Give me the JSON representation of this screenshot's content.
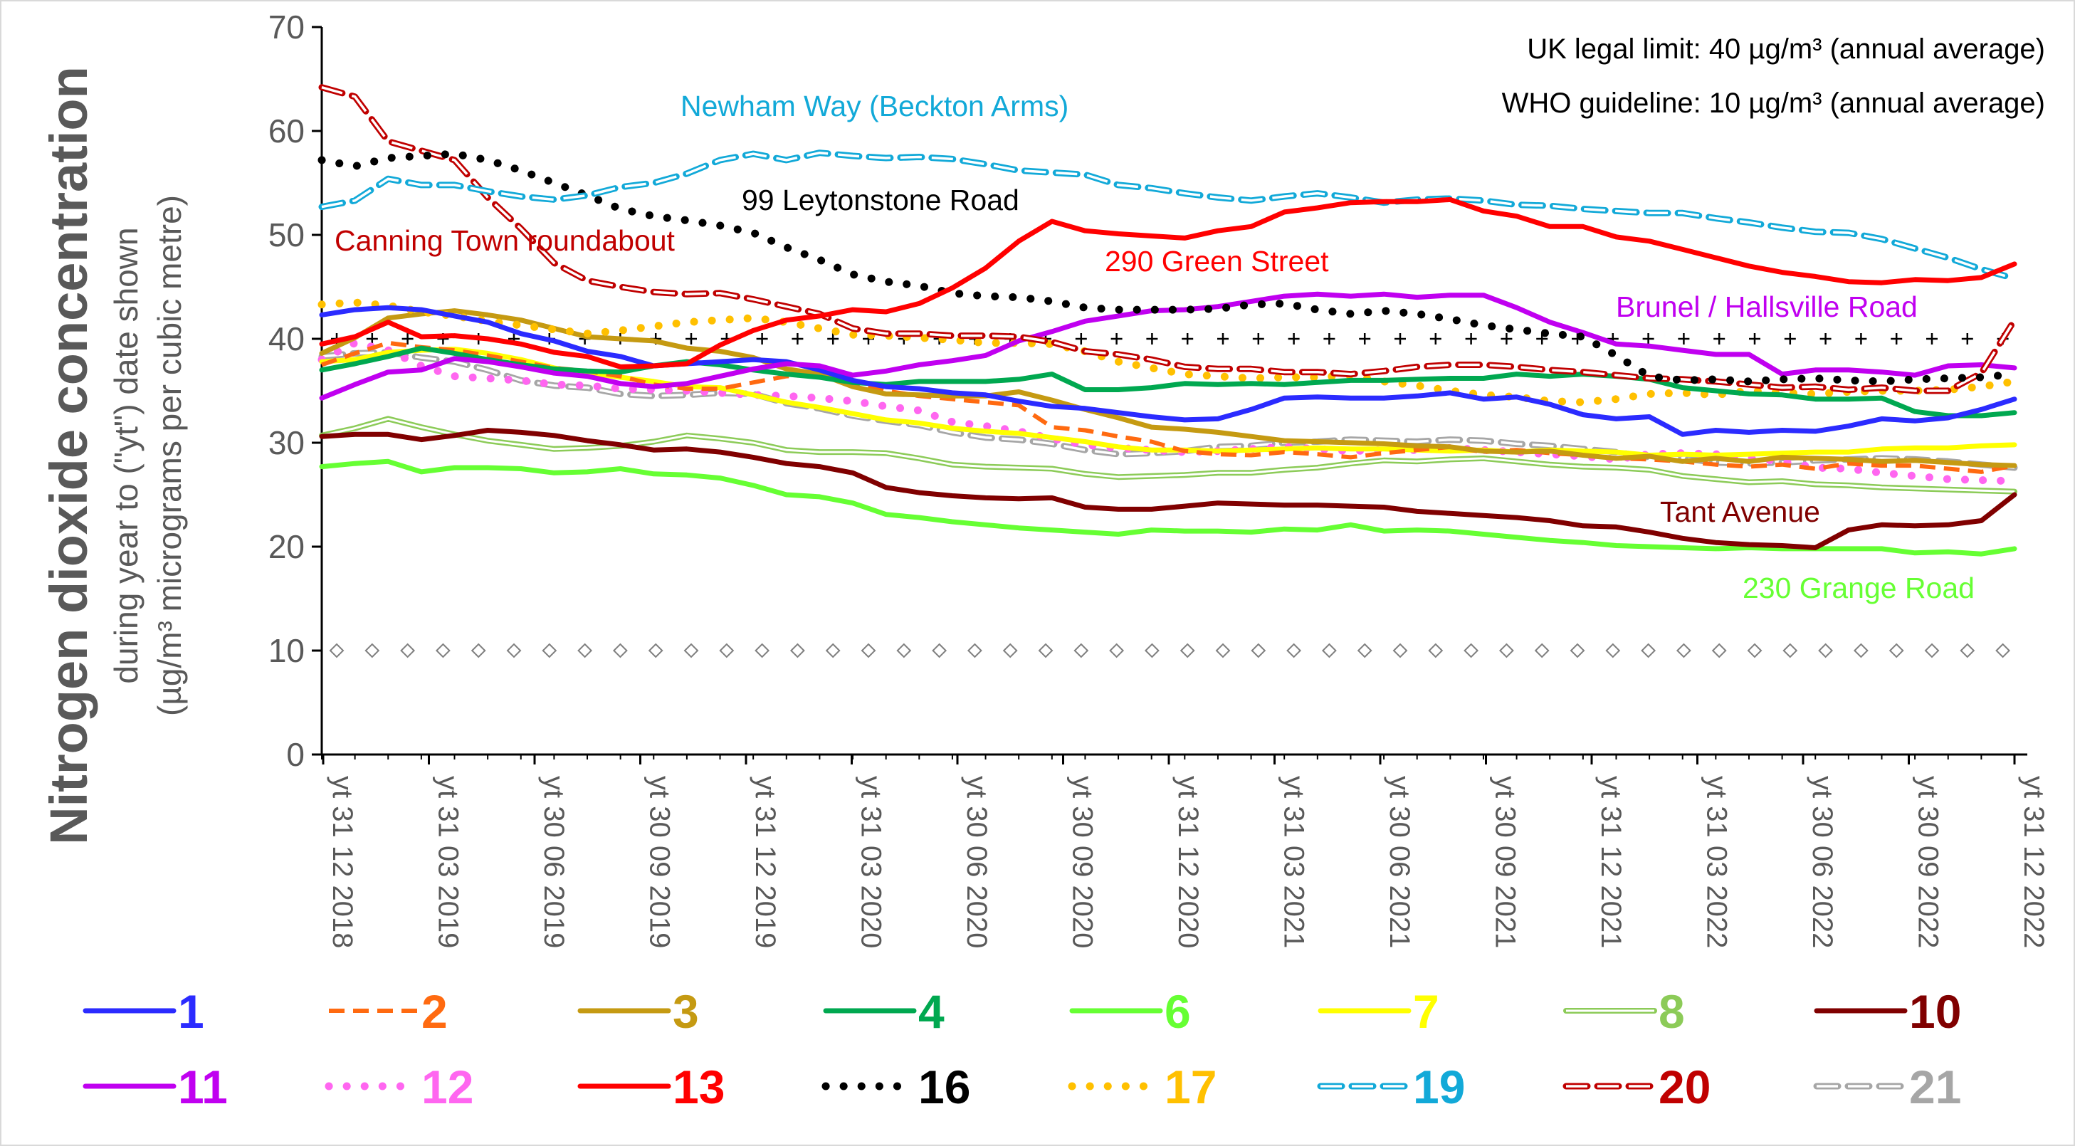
{
  "chart_data": {
    "type": "line",
    "ylabel_main": "Nitrogen dioxide concentration",
    "ylabel_sub1": "during year to (\"yt\") date shown",
    "ylabel_sub2": "(µg/m³ micrograms per cubic metre)",
    "ylim": [
      0,
      70
    ],
    "yticks": [
      "0",
      "10",
      "20",
      "30",
      "40",
      "50",
      "60",
      "70"
    ],
    "x_labels": [
      "yt 31 12 2018",
      "yt 31 03 2019",
      "yt 30 06 2019",
      "yt 30 09 2019",
      "yt 31 12 2019",
      "yt 31 03 2020",
      "yt 30 06 2020",
      "yt 30 09 2020",
      "yt 31 12 2020",
      "yt 31 03 2021",
      "yt 30 06 2021",
      "yt 30 09 2021",
      "yt 31 12 2021",
      "yt 31 03 2022",
      "yt 30 06 2022",
      "yt 30 09 2022",
      "yt 31 12 2022"
    ],
    "notes": {
      "uk_limit": "UK legal limit:  40 µg/m³  (annual average)",
      "who_guideline": "WHO guideline:  10 µg/m³  (annual average)"
    },
    "reference_lines": [
      {
        "value": 40,
        "marker": "plus",
        "color": "#000000"
      },
      {
        "value": 10,
        "marker": "diamond",
        "color": "#808080"
      }
    ],
    "annotations": [
      {
        "text": "Newham Way (Beckton Arms)",
        "color": "#12A9D8"
      },
      {
        "text": "99 Leytonstone Road",
        "color": "#000000"
      },
      {
        "text": "Canning Town roundabout",
        "color": "#C00000"
      },
      {
        "text": "290 Green Street",
        "color": "#FF0000"
      },
      {
        "text": "Brunel / Hallsville Road",
        "color": "#C000F0"
      },
      {
        "text": "Tant Avenue",
        "color": "#800000"
      },
      {
        "text": "230 Grange Road",
        "color": "#66FF33"
      }
    ],
    "series": [
      {
        "name": "1",
        "color": "#2B2BFF",
        "style": "solid",
        "values": [
          42.3,
          42.8,
          43.0,
          42.8,
          42.2,
          41.6,
          40.5,
          39.8,
          38.8,
          38.3,
          37.4,
          37.6,
          37.8,
          38.0,
          37.8,
          37.0,
          36.0,
          35.4,
          35.2,
          34.8,
          34.6,
          34.0,
          33.5,
          33.3,
          32.9,
          32.5,
          32.2,
          32.3,
          33.2,
          34.3,
          34.4,
          34.3,
          34.3,
          34.5,
          34.8,
          34.2,
          34.4,
          33.7,
          32.7,
          32.3,
          32.5,
          30.8,
          31.2,
          31.0,
          31.2,
          31.1,
          31.6,
          32.3,
          32.1,
          32.4,
          33.2,
          34.2
        ]
      },
      {
        "name": "2",
        "color": "#FF6A10",
        "style": "dashed",
        "values": [
          37.5,
          38.6,
          39.6,
          39.2,
          38.9,
          38.4,
          37.8,
          37.2,
          36.9,
          36.4,
          35.6,
          35.2,
          35.2,
          35.8,
          36.4,
          36.6,
          35.6,
          35.0,
          34.5,
          34.2,
          33.9,
          33.6,
          31.5,
          31.2,
          30.6,
          30.1,
          29.2,
          28.9,
          28.8,
          29.1,
          28.9,
          28.6,
          29.0,
          29.3,
          29.6,
          29.1,
          29.3,
          29.0,
          28.8,
          28.5,
          28.4,
          28.2,
          27.9,
          27.7,
          27.9,
          27.5,
          28.0,
          27.8,
          27.8,
          27.5,
          27.2,
          27.8
        ]
      },
      {
        "name": "3",
        "color": "#C59A12",
        "style": "solid",
        "values": [
          38.6,
          40.1,
          42.0,
          42.4,
          42.7,
          42.3,
          41.8,
          41.0,
          40.2,
          40.0,
          39.8,
          39.1,
          38.8,
          38.2,
          37.1,
          36.6,
          35.4,
          34.7,
          34.6,
          34.5,
          34.5,
          34.9,
          34.1,
          33.2,
          32.4,
          31.5,
          31.3,
          31.0,
          30.6,
          30.2,
          30.1,
          30.0,
          29.9,
          29.7,
          29.6,
          29.2,
          29.1,
          29.2,
          28.8,
          28.5,
          28.7,
          28.2,
          28.5,
          28.2,
          28.6,
          28.5,
          28.4,
          28.2,
          28.3,
          28.1,
          27.9,
          27.8
        ]
      },
      {
        "name": "4",
        "color": "#00A850",
        "style": "solid",
        "values": [
          37.0,
          37.6,
          38.3,
          39.1,
          38.6,
          38.0,
          37.5,
          37.1,
          36.9,
          36.8,
          37.4,
          37.8,
          37.5,
          37.0,
          36.6,
          36.3,
          35.8,
          35.6,
          35.9,
          35.9,
          35.9,
          36.1,
          36.6,
          35.1,
          35.1,
          35.3,
          35.7,
          35.6,
          35.7,
          35.6,
          35.8,
          36.0,
          36.0,
          36.1,
          36.2,
          36.2,
          36.6,
          36.4,
          36.6,
          36.4,
          36.1,
          35.3,
          35.0,
          34.7,
          34.6,
          34.2,
          34.2,
          34.3,
          33.0,
          32.6,
          32.6,
          32.9
        ]
      },
      {
        "name": "6",
        "color": "#66FF33",
        "style": "solid",
        "values": [
          27.7,
          28.0,
          28.2,
          27.2,
          27.6,
          27.6,
          27.5,
          27.1,
          27.2,
          27.5,
          27.0,
          26.9,
          26.6,
          25.9,
          25.0,
          24.8,
          24.2,
          23.1,
          22.8,
          22.4,
          22.1,
          21.8,
          21.6,
          21.4,
          21.2,
          21.6,
          21.5,
          21.5,
          21.4,
          21.7,
          21.6,
          22.1,
          21.5,
          21.6,
          21.5,
          21.2,
          20.9,
          20.6,
          20.4,
          20.1,
          20.0,
          19.9,
          19.8,
          19.9,
          19.8,
          19.8,
          19.8,
          19.8,
          19.4,
          19.5,
          19.3,
          19.8
        ]
      },
      {
        "name": "7",
        "color": "#FFFF00",
        "style": "solid",
        "values": [
          37.8,
          38.0,
          38.7,
          38.9,
          39.0,
          38.6,
          38.0,
          37.2,
          36.7,
          36.3,
          35.9,
          35.4,
          35.3,
          34.6,
          33.9,
          33.4,
          32.8,
          32.2,
          31.9,
          31.4,
          31.1,
          30.9,
          30.5,
          30.1,
          29.6,
          29.3,
          29.3,
          29.2,
          29.3,
          29.4,
          29.5,
          29.4,
          29.4,
          29.3,
          29.2,
          29.3,
          29.1,
          29.3,
          29.2,
          29.1,
          28.8,
          28.9,
          28.8,
          28.9,
          29.0,
          29.1,
          29.1,
          29.4,
          29.5,
          29.5,
          29.7,
          29.8
        ]
      },
      {
        "name": "8",
        "color": "#8CCB58",
        "style": "double",
        "values": [
          30.7,
          31.4,
          32.3,
          31.5,
          30.8,
          30.2,
          29.8,
          29.4,
          29.5,
          29.7,
          30.1,
          30.7,
          30.4,
          30.0,
          29.3,
          29.1,
          29.1,
          29.0,
          28.5,
          27.9,
          27.7,
          27.6,
          27.5,
          27.0,
          26.7,
          26.8,
          26.9,
          27.1,
          27.1,
          27.4,
          27.6,
          28.0,
          28.3,
          28.2,
          28.4,
          28.5,
          28.2,
          27.9,
          27.7,
          27.6,
          27.4,
          26.8,
          26.5,
          26.2,
          26.3,
          26.0,
          25.9,
          25.7,
          25.6,
          25.5,
          25.4,
          25.3
        ]
      },
      {
        "name": "10",
        "color": "#800000",
        "style": "solid",
        "values": [
          30.6,
          30.8,
          30.8,
          30.3,
          30.7,
          31.2,
          31.0,
          30.7,
          30.2,
          29.8,
          29.3,
          29.4,
          29.1,
          28.6,
          28.0,
          27.7,
          27.1,
          25.7,
          25.2,
          24.9,
          24.7,
          24.6,
          24.7,
          23.8,
          23.6,
          23.6,
          23.9,
          24.2,
          24.1,
          24.0,
          24.0,
          23.9,
          23.8,
          23.4,
          23.2,
          23.0,
          22.8,
          22.5,
          22.0,
          21.9,
          21.4,
          20.8,
          20.4,
          20.2,
          20.1,
          19.9,
          21.6,
          22.1,
          22.0,
          22.1,
          22.5,
          25.0
        ]
      },
      {
        "name": "11",
        "color": "#C000F0",
        "style": "solid",
        "values": [
          34.3,
          35.6,
          36.8,
          37.0,
          38.1,
          37.8,
          37.3,
          36.7,
          36.4,
          35.7,
          35.4,
          35.7,
          36.4,
          37.1,
          37.6,
          37.4,
          36.5,
          36.9,
          37.5,
          37.9,
          38.4,
          39.8,
          40.7,
          41.7,
          42.2,
          42.7,
          42.8,
          43.1,
          43.6,
          44.1,
          44.3,
          44.1,
          44.3,
          44.0,
          44.2,
          44.2,
          43.0,
          41.6,
          40.6,
          39.5,
          39.3,
          38.9,
          38.5,
          38.5,
          36.6,
          37.0,
          37.0,
          36.8,
          36.5,
          37.4,
          37.5,
          37.2
        ]
      },
      {
        "name": "12",
        "color": "#FF66F0",
        "style": "dotted",
        "values": [
          38.0,
          39.6,
          38.9,
          37.4,
          36.4,
          36.2,
          36.0,
          35.6,
          35.5,
          35.2,
          35.1,
          35.0,
          34.8,
          34.6,
          34.5,
          34.3,
          34.0,
          33.5,
          33.1,
          32.0,
          31.6,
          31.1,
          30.4,
          29.8,
          29.5,
          29.3,
          29.1,
          29.2,
          29.4,
          29.6,
          29.4,
          29.2,
          29.3,
          29.3,
          29.5,
          29.3,
          29.1,
          28.9,
          28.7,
          28.4,
          28.9,
          29.0,
          28.9,
          28.5,
          28.2,
          27.6,
          27.5,
          27.1,
          26.8,
          26.5,
          26.4,
          26.3
        ]
      },
      {
        "name": "13",
        "color": "#FF0000",
        "style": "solid",
        "values": [
          39.5,
          40.2,
          41.6,
          40.2,
          40.3,
          40.0,
          39.5,
          38.7,
          38.3,
          37.3,
          37.4,
          37.6,
          39.4,
          40.8,
          41.8,
          42.2,
          42.8,
          42.6,
          43.4,
          44.9,
          46.8,
          49.4,
          51.3,
          50.4,
          50.1,
          49.9,
          49.7,
          50.4,
          50.8,
          52.2,
          52.6,
          53.1,
          53.2,
          53.2,
          53.4,
          52.3,
          51.8,
          50.8,
          50.8,
          49.8,
          49.4,
          48.6,
          47.8,
          47.0,
          46.4,
          46.0,
          45.5,
          45.4,
          45.7,
          45.6,
          45.9,
          47.2
        ]
      },
      {
        "name": "16",
        "color": "#000000",
        "style": "dotted",
        "values": [
          57.2,
          56.6,
          57.4,
          57.6,
          57.8,
          57.2,
          56.2,
          55.0,
          53.8,
          52.5,
          51.8,
          51.4,
          50.9,
          50.2,
          48.8,
          47.6,
          46.2,
          45.5,
          45.1,
          44.4,
          44.1,
          44.0,
          43.6,
          43.0,
          42.8,
          42.8,
          42.8,
          42.9,
          43.3,
          43.4,
          42.8,
          42.4,
          42.7,
          42.4,
          41.9,
          41.3,
          40.9,
          40.5,
          40.2,
          38.4,
          36.4,
          36.0,
          36.1,
          35.9,
          36.1,
          36.2,
          36.0,
          35.9,
          36.1,
          36.2,
          36.3,
          36.6
        ]
      },
      {
        "name": "17",
        "color": "#FFC000",
        "style": "dotted",
        "values": [
          43.3,
          43.5,
          43.2,
          42.6,
          42.2,
          41.7,
          41.3,
          40.9,
          40.5,
          40.8,
          41.2,
          41.6,
          41.8,
          42.0,
          41.6,
          41.0,
          40.4,
          40.3,
          40.1,
          39.9,
          39.6,
          39.6,
          39.5,
          38.8,
          37.8,
          37.2,
          36.6,
          36.4,
          36.2,
          36.3,
          36.3,
          36.5,
          35.9,
          35.5,
          35.0,
          34.6,
          34.4,
          34.0,
          33.9,
          34.2,
          34.7,
          34.8,
          34.6,
          35.0,
          34.8,
          34.7,
          34.9,
          35.0,
          35.0,
          35.1,
          35.4,
          35.9
        ]
      },
      {
        "name": "19",
        "color": "#12A9D8",
        "style": "double-dash",
        "values": [
          52.7,
          53.3,
          55.4,
          54.8,
          54.8,
          54.2,
          53.7,
          53.4,
          53.8,
          54.6,
          55.0,
          55.9,
          57.2,
          57.8,
          57.2,
          57.9,
          57.6,
          57.4,
          57.5,
          57.3,
          56.8,
          56.2,
          56.0,
          55.8,
          54.8,
          54.5,
          54.0,
          53.6,
          53.3,
          53.7,
          54.0,
          53.6,
          53.1,
          53.4,
          53.5,
          53.3,
          52.9,
          52.8,
          52.5,
          52.3,
          52.1,
          52.1,
          51.6,
          51.2,
          50.7,
          50.3,
          50.2,
          49.6,
          48.7,
          47.8,
          46.7,
          45.8
        ]
      },
      {
        "name": "20",
        "color": "#C00000",
        "style": "double-dash",
        "values": [
          64.2,
          63.3,
          59.0,
          58.1,
          57.2,
          53.6,
          50.6,
          47.3,
          45.6,
          45.0,
          44.5,
          44.3,
          44.4,
          43.8,
          43.1,
          42.4,
          41.0,
          40.5,
          40.5,
          40.3,
          40.3,
          40.2,
          39.7,
          38.8,
          38.5,
          38.0,
          37.3,
          37.1,
          37.1,
          36.8,
          36.8,
          36.6,
          36.9,
          37.3,
          37.5,
          37.5,
          37.3,
          37.0,
          36.8,
          36.5,
          36.2,
          36.1,
          35.9,
          35.6,
          35.3,
          35.4,
          35.1,
          35.3,
          35.0,
          35.0,
          36.7,
          41.8
        ]
      },
      {
        "name": "21",
        "color": "#A6A6A6",
        "style": "double-dash",
        "values": [
          38.3,
          38.6,
          38.7,
          38.2,
          37.8,
          37.0,
          36.0,
          35.5,
          35.3,
          34.7,
          34.5,
          34.6,
          34.8,
          34.7,
          33.8,
          33.3,
          32.6,
          32.1,
          31.7,
          31.0,
          30.5,
          30.3,
          29.9,
          29.3,
          28.9,
          29.0,
          29.2,
          29.6,
          29.7,
          30.0,
          30.1,
          30.3,
          30.2,
          30.1,
          30.3,
          30.2,
          29.9,
          29.7,
          29.4,
          29.1,
          28.6,
          28.5,
          28.1,
          28.0,
          28.1,
          28.3,
          28.4,
          28.5,
          28.4,
          28.2,
          27.9,
          27.6
        ]
      }
    ]
  }
}
